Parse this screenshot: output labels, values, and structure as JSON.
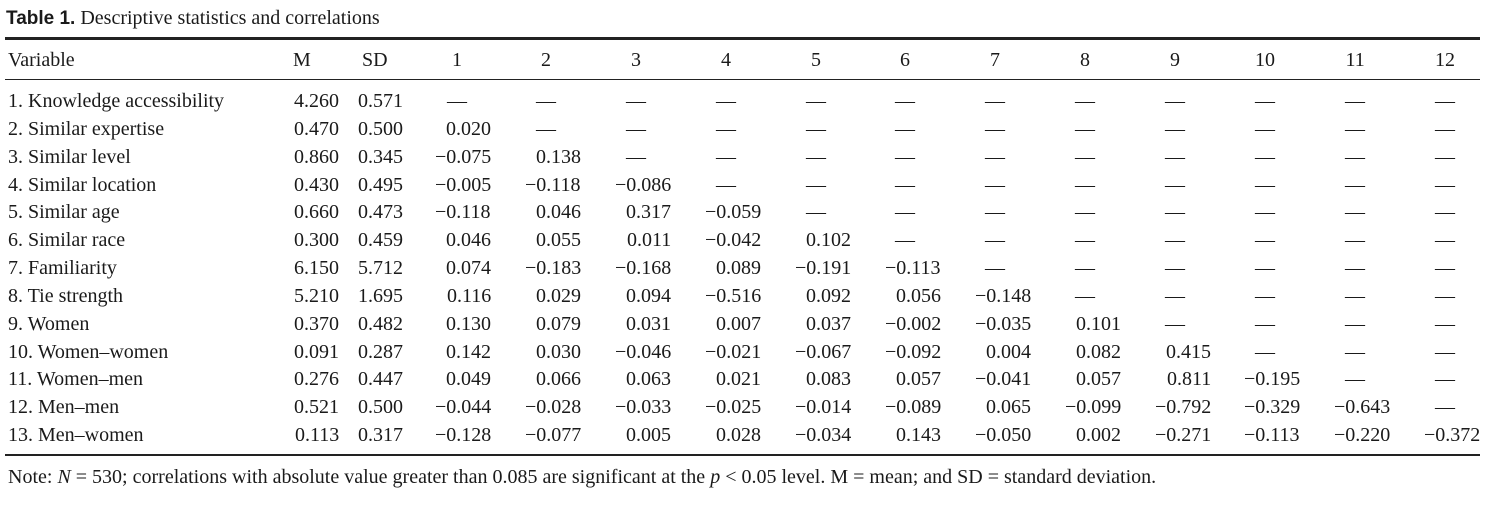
{
  "header": {
    "label": "Table 1.",
    "title": "Descriptive statistics and correlations"
  },
  "table": {
    "columns": [
      "Variable",
      "M",
      "SD",
      "1",
      "2",
      "3",
      "4",
      "5",
      "6",
      "7",
      "8",
      "9",
      "10",
      "11",
      "12"
    ],
    "rows": [
      [
        "1. Knowledge accessibility",
        "4.260",
        "0.571",
        "—",
        "—",
        "—",
        "—",
        "—",
        "—",
        "—",
        "—",
        "—",
        "—",
        "—",
        "—"
      ],
      [
        "2. Similar expertise",
        "0.470",
        "0.500",
        "0.020",
        "—",
        "—",
        "—",
        "—",
        "—",
        "—",
        "—",
        "—",
        "—",
        "—",
        "—"
      ],
      [
        "3. Similar level",
        "0.860",
        "0.345",
        "−0.075",
        "0.138",
        "—",
        "—",
        "—",
        "—",
        "—",
        "—",
        "—",
        "—",
        "—",
        "—"
      ],
      [
        "4. Similar location",
        "0.430",
        "0.495",
        "−0.005",
        "−0.118",
        "−0.086",
        "—",
        "—",
        "—",
        "—",
        "—",
        "—",
        "—",
        "—",
        "—"
      ],
      [
        "5. Similar age",
        "0.660",
        "0.473",
        "−0.118",
        "0.046",
        "0.317",
        "−0.059",
        "—",
        "—",
        "—",
        "—",
        "—",
        "—",
        "—",
        "—"
      ],
      [
        "6. Similar race",
        "0.300",
        "0.459",
        "0.046",
        "0.055",
        "0.011",
        "−0.042",
        "0.102",
        "—",
        "—",
        "—",
        "—",
        "—",
        "—",
        "—"
      ],
      [
        "7. Familiarity",
        "6.150",
        "5.712",
        "0.074",
        "−0.183",
        "−0.168",
        "0.089",
        "−0.191",
        "−0.113",
        "—",
        "—",
        "—",
        "—",
        "—",
        "—"
      ],
      [
        "8. Tie strength",
        "5.210",
        "1.695",
        "0.116",
        "0.029",
        "0.094",
        "−0.516",
        "0.092",
        "0.056",
        "−0.148",
        "—",
        "—",
        "—",
        "—",
        "—"
      ],
      [
        "9. Women",
        "0.370",
        "0.482",
        "0.130",
        "0.079",
        "0.031",
        "0.007",
        "0.037",
        "−0.002",
        "−0.035",
        "0.101",
        "—",
        "—",
        "—",
        "—"
      ],
      [
        "10. Women–women",
        "0.091",
        "0.287",
        "0.142",
        "0.030",
        "−0.046",
        "−0.021",
        "−0.067",
        "−0.092",
        "0.004",
        "0.082",
        "0.415",
        "—",
        "—",
        "—"
      ],
      [
        "11. Women–men",
        "0.276",
        "0.447",
        "0.049",
        "0.066",
        "0.063",
        "0.021",
        "0.083",
        "0.057",
        "−0.041",
        "0.057",
        "0.811",
        "−0.195",
        "—",
        "—"
      ],
      [
        "12. Men–men",
        "0.521",
        "0.500",
        "−0.044",
        "−0.028",
        "−0.033",
        "−0.025",
        "−0.014",
        "−0.089",
        "0.065",
        "−0.099",
        "−0.792",
        "−0.329",
        "−0.643",
        "—"
      ],
      [
        "13. Men–women",
        "0.113",
        "0.317",
        "−0.128",
        "−0.077",
        "0.005",
        "0.028",
        "−0.034",
        "0.143",
        "−0.050",
        "0.002",
        "−0.271",
        "−0.113",
        "−0.220",
        "−0.372"
      ]
    ]
  },
  "note": {
    "parts": [
      "Note: ",
      "N",
      " = 530; correlations with absolute value greater than 0.085 are significant at the ",
      "p",
      " < 0.05 level. M = mean; and SD = standard deviation."
    ]
  }
}
